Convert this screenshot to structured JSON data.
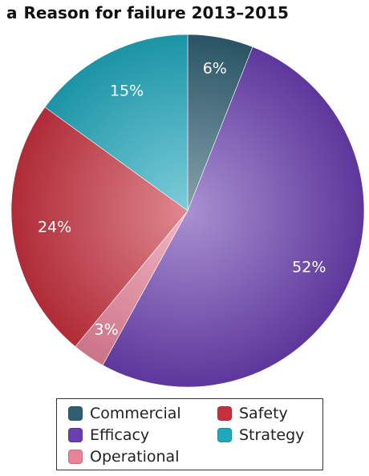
{
  "title": {
    "panel": "a",
    "text": "Reason for failure 2013–2015"
  },
  "colors": {
    "Commercial": "#2f5f73",
    "Efficacy": "#6a3fb0",
    "Operational": "#e8839a",
    "Safety": "#c7313f",
    "Strategy": "#1fa8bd"
  },
  "chart_data": {
    "type": "pie",
    "title": "Reason for failure 2013–2015",
    "slices": [
      {
        "label": "Commercial",
        "value": 6,
        "display": "6%"
      },
      {
        "label": "Efficacy",
        "value": 52,
        "display": "52%"
      },
      {
        "label": "Operational",
        "value": 3,
        "display": "3%"
      },
      {
        "label": "Safety",
        "value": 24,
        "display": "24%"
      },
      {
        "label": "Strategy",
        "value": 15,
        "display": "15%"
      }
    ],
    "start_angle": "12 o'clock",
    "direction": "clockwise",
    "legend": {
      "placement": "bottom",
      "items": [
        "Commercial",
        "Safety",
        "Efficacy",
        "Strategy",
        "Operational"
      ]
    }
  }
}
